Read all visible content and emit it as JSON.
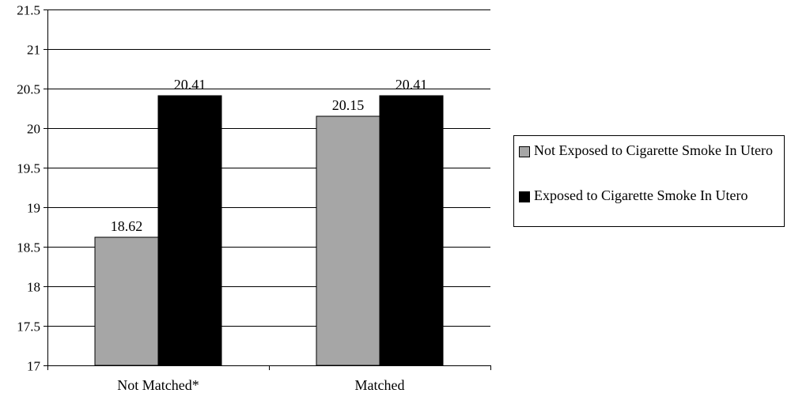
{
  "chart_data": {
    "type": "bar",
    "categories": [
      "Not Matched*",
      "Matched"
    ],
    "series": [
      {
        "name": "Not Exposed to Cigarette Smoke In Utero",
        "values": [
          18.62,
          20.15
        ],
        "color": "#a6a6a6"
      },
      {
        "name": "Exposed to Cigarette Smoke In Utero",
        "values": [
          20.41,
          20.41
        ],
        "color": "#000000"
      }
    ],
    "data_labels": [
      [
        "18.62",
        "20.15"
      ],
      [
        "20.41",
        "20.41"
      ]
    ],
    "ylim": [
      17,
      21.5
    ],
    "yticks": [
      "17",
      "17.5",
      "18",
      "18.5",
      "19",
      "19.5",
      "20",
      "20.5",
      "21",
      "21.5"
    ],
    "grid": true,
    "legend_position": "right",
    "title": "",
    "xlabel": "",
    "ylabel": ""
  }
}
